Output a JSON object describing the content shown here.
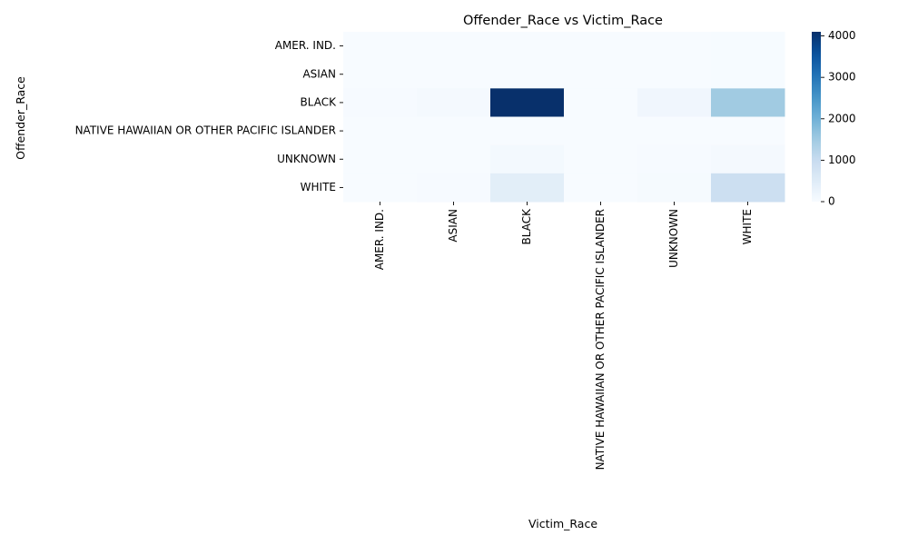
{
  "chart_data": {
    "type": "heatmap",
    "title": "Offender_Race vs Victim_Race",
    "xlabel": "Victim_Race",
    "ylabel": "Offender_Race",
    "x_categories": [
      "AMER. IND.",
      "ASIAN",
      "BLACK",
      "NATIVE HAWAIIAN OR OTHER PACIFIC ISLANDER",
      "UNKNOWN",
      "WHITE"
    ],
    "y_categories": [
      "AMER. IND.",
      "ASIAN",
      "BLACK",
      "NATIVE HAWAIIAN OR OTHER PACIFIC ISLANDER",
      "UNKNOWN",
      "WHITE"
    ],
    "values": [
      [
        2,
        0,
        10,
        0,
        2,
        15
      ],
      [
        0,
        3,
        8,
        0,
        3,
        12
      ],
      [
        20,
        60,
        4100,
        5,
        150,
        1500
      ],
      [
        0,
        0,
        3,
        0,
        0,
        4
      ],
      [
        2,
        5,
        80,
        0,
        30,
        60
      ],
      [
        10,
        25,
        430,
        2,
        40,
        900
      ]
    ],
    "colorscale": "Blues",
    "colorbar": {
      "min": 0,
      "max": 4100,
      "ticks": [
        0,
        1000,
        2000,
        3000,
        4000
      ]
    },
    "grid": false
  }
}
